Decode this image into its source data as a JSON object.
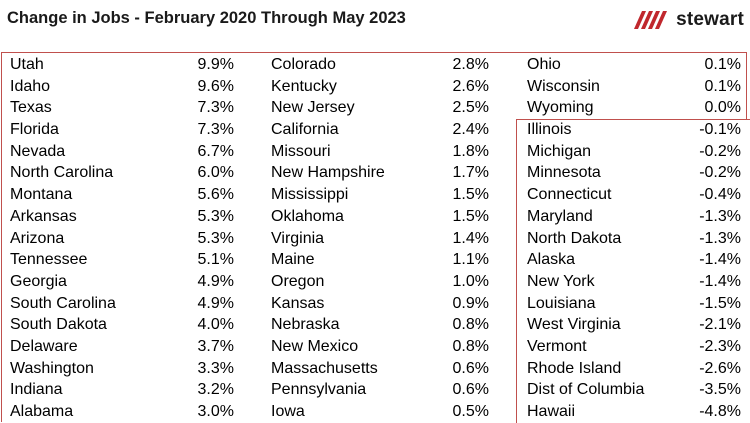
{
  "header": {
    "title": "Change in Jobs - February 2020 Through May 2023",
    "logo_text": "stewart",
    "logo_color": "#c0272d"
  },
  "colors": {
    "box_border": "#c0504d"
  },
  "chart_data": {
    "type": "table",
    "columns": [
      [
        {
          "state": "Utah",
          "value": "9.9%"
        },
        {
          "state": "Idaho",
          "value": "9.6%"
        },
        {
          "state": "Texas",
          "value": "7.3%"
        },
        {
          "state": "Florida",
          "value": "7.3%"
        },
        {
          "state": "Nevada",
          "value": "6.7%"
        },
        {
          "state": "North Carolina",
          "value": "6.0%"
        },
        {
          "state": "Montana",
          "value": "5.6%"
        },
        {
          "state": "Arkansas",
          "value": "5.3%"
        },
        {
          "state": "Arizona",
          "value": "5.3%"
        },
        {
          "state": "Tennessee",
          "value": "5.1%"
        },
        {
          "state": "Georgia",
          "value": "4.9%"
        },
        {
          "state": "South Carolina",
          "value": "4.9%"
        },
        {
          "state": "South Dakota",
          "value": "4.0%"
        },
        {
          "state": "Delaware",
          "value": "3.7%"
        },
        {
          "state": "Washington",
          "value": "3.3%"
        },
        {
          "state": "Indiana",
          "value": "3.2%"
        },
        {
          "state": "Alabama",
          "value": "3.0%"
        }
      ],
      [
        {
          "state": "Colorado",
          "value": "2.8%"
        },
        {
          "state": "Kentucky",
          "value": "2.6%"
        },
        {
          "state": "New Jersey",
          "value": "2.5%"
        },
        {
          "state": "California",
          "value": "2.4%"
        },
        {
          "state": "Missouri",
          "value": "1.8%"
        },
        {
          "state": "New Hampshire",
          "value": "1.7%"
        },
        {
          "state": "Mississippi",
          "value": "1.5%"
        },
        {
          "state": "Oklahoma",
          "value": "1.5%"
        },
        {
          "state": "Virginia",
          "value": "1.4%"
        },
        {
          "state": "Maine",
          "value": "1.1%"
        },
        {
          "state": "Oregon",
          "value": "1.0%"
        },
        {
          "state": "Kansas",
          "value": "0.9%"
        },
        {
          "state": "Nebraska",
          "value": "0.8%"
        },
        {
          "state": "New Mexico",
          "value": "0.8%"
        },
        {
          "state": "Massachusetts",
          "value": "0.6%"
        },
        {
          "state": "Pennsylvania",
          "value": "0.6%"
        },
        {
          "state": "Iowa",
          "value": "0.5%"
        }
      ],
      [
        {
          "state": "Ohio",
          "value": "0.1%"
        },
        {
          "state": "Wisconsin",
          "value": "0.1%"
        },
        {
          "state": "Wyoming",
          "value": "0.0%"
        },
        {
          "state": "Illinois",
          "value": "-0.1%"
        },
        {
          "state": "Michigan",
          "value": "-0.2%"
        },
        {
          "state": "Minnesota",
          "value": "-0.2%"
        },
        {
          "state": "Connecticut",
          "value": "-0.4%"
        },
        {
          "state": "Maryland",
          "value": "-1.3%"
        },
        {
          "state": "North Dakota",
          "value": "-1.3%"
        },
        {
          "state": "Alaska",
          "value": "-1.4%"
        },
        {
          "state": "New York",
          "value": "-1.4%"
        },
        {
          "state": "Louisiana",
          "value": "-1.5%"
        },
        {
          "state": "West Virginia",
          "value": "-2.1%"
        },
        {
          "state": "Vermont",
          "value": "-2.3%"
        },
        {
          "state": "Rhode Island",
          "value": "-2.6%"
        },
        {
          "state": "Dist of Columbia",
          "value": "-3.5%"
        },
        {
          "state": "Hawaii",
          "value": "-4.8%"
        }
      ]
    ]
  }
}
